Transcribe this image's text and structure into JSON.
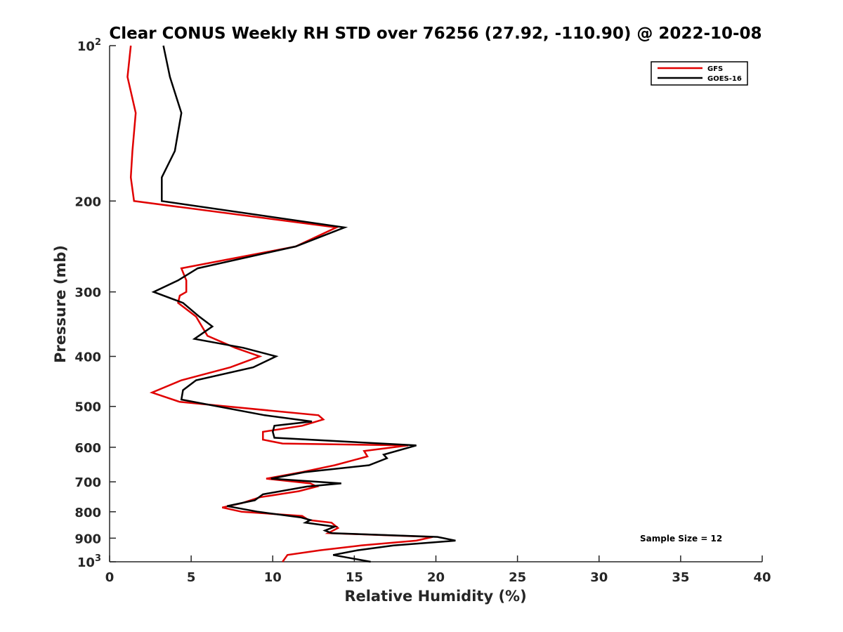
{
  "chart_data": {
    "type": "line",
    "title": "Clear CONUS Weekly RH STD over 76256 (27.92, -110.90) @ 2022-10-08",
    "xlabel": "Relative Humidity (%)",
    "ylabel": "Pressure (mb)",
    "xlim": [
      0,
      40
    ],
    "ylim": [
      100,
      1000
    ],
    "yscale": "log",
    "y_reversed": true,
    "xticks": [
      0,
      5,
      10,
      15,
      20,
      25,
      30,
      35,
      40
    ],
    "xtick_labels": [
      "0",
      "5",
      "10",
      "15",
      "20",
      "25",
      "30",
      "35",
      "40"
    ],
    "yticks": [
      100,
      200,
      300,
      400,
      500,
      600,
      700,
      800,
      900,
      1000
    ],
    "ytick_labels": [
      {
        "base": "10",
        "exp": "2"
      },
      {
        "base": "200"
      },
      {
        "base": "300"
      },
      {
        "base": "400"
      },
      {
        "base": "500"
      },
      {
        "base": "600"
      },
      {
        "base": "700"
      },
      {
        "base": "800"
      },
      {
        "base": "900"
      },
      {
        "base": "10",
        "exp": "3"
      }
    ],
    "grid": false,
    "legend_position": "top-right",
    "annotation": "Sample Size = 12",
    "series": [
      {
        "name": "GFS",
        "color": "#e00000",
        "x": [
          1.3,
          1.1,
          1.6,
          1.4,
          1.3,
          1.5,
          13.9,
          11.4,
          4.4,
          4.7,
          4.7,
          4.3,
          4.2,
          5.3,
          6.0,
          7.7,
          9.2,
          7.4,
          4.4,
          2.6,
          4.3,
          12.8,
          13.1,
          11.8,
          9.4,
          9.4,
          10.6,
          18.3,
          15.6,
          15.8,
          13.8,
          11.8,
          9.6,
          12.3,
          12.7,
          11.6,
          9.2,
          8.1,
          6.9,
          8.1,
          11.8,
          12.2,
          13.6,
          14.0,
          13.4,
          19.8,
          18.8,
          15.4,
          12.9,
          10.9,
          10.6
        ],
        "y": [
          100,
          115,
          135,
          160,
          180,
          200,
          225,
          245,
          270,
          285,
          300,
          305,
          315,
          335,
          365,
          385,
          400,
          420,
          445,
          470,
          490,
          520,
          530,
          545,
          560,
          580,
          590,
          595,
          610,
          625,
          650,
          670,
          690,
          705,
          715,
          730,
          750,
          770,
          785,
          800,
          815,
          830,
          840,
          860,
          880,
          895,
          910,
          930,
          950,
          970,
          1000
        ]
      },
      {
        "name": "GOES-16",
        "color": "#000000",
        "x": [
          3.3,
          3.7,
          4.4,
          4.0,
          3.2,
          3.2,
          14.4,
          11.4,
          5.4,
          4.2,
          2.7,
          4.5,
          5.5,
          6.3,
          5.2,
          8.2,
          10.2,
          8.8,
          5.3,
          4.5,
          4.4,
          9.5,
          12.4,
          10.1,
          10.0,
          10.1,
          18.8,
          16.8,
          17.0,
          15.9,
          12.0,
          9.9,
          14.2,
          12.1,
          9.4,
          8.9,
          7.2,
          9.1,
          11.7,
          12.3,
          12.0,
          13.8,
          13.2,
          13.6,
          20.1,
          21.2,
          17.4,
          15.2,
          13.7,
          16.0
        ],
        "y": [
          100,
          115,
          135,
          160,
          180,
          200,
          225,
          245,
          270,
          285,
          300,
          315,
          335,
          350,
          370,
          385,
          400,
          420,
          445,
          465,
          485,
          520,
          535,
          545,
          560,
          575,
          595,
          620,
          630,
          650,
          670,
          690,
          705,
          715,
          740,
          760,
          780,
          800,
          820,
          830,
          840,
          855,
          870,
          880,
          895,
          910,
          930,
          950,
          970,
          1000
        ]
      }
    ]
  }
}
